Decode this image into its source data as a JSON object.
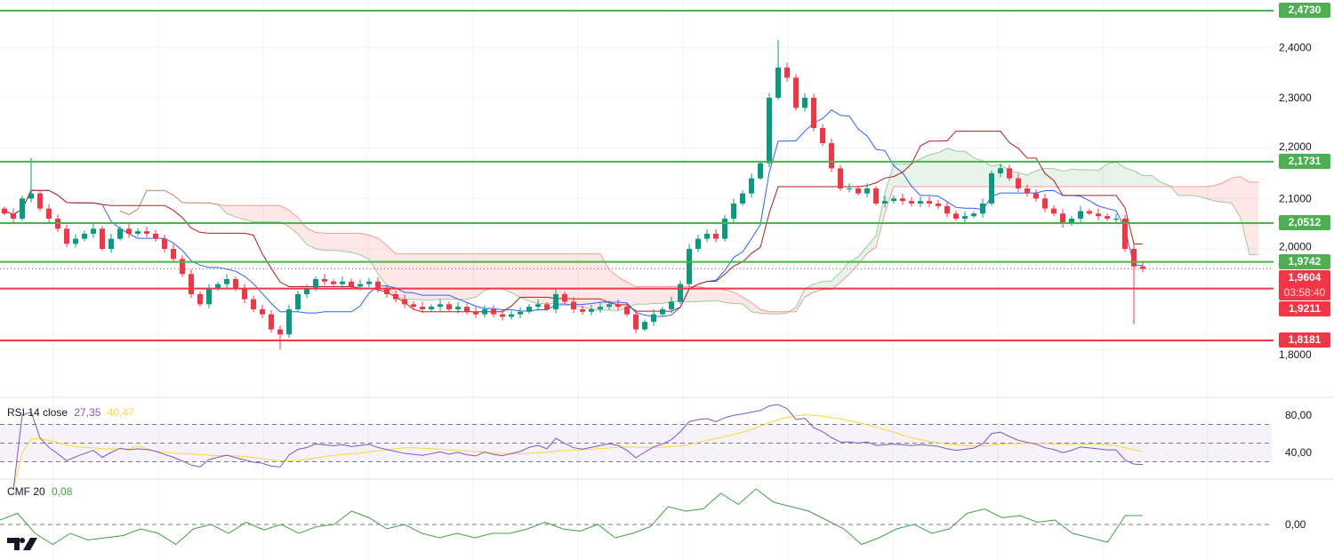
{
  "chart_data": {
    "type": "candlestick",
    "price_axis": {
      "min": 1.78,
      "max": 2.48,
      "ticks": [
        "2,4000",
        "2,3000",
        "2,2000",
        "2,1000",
        "2,0000",
        "1,8000"
      ],
      "tick_values": [
        2.4,
        2.3,
        2.2,
        2.1,
        2.0,
        1.8
      ]
    },
    "closes": [
      2.07,
      2.06,
      2.1,
      2.11,
      2.08,
      2.06,
      2.04,
      2.01,
      2.02,
      2.03,
      2.04,
      2.0,
      2.02,
      2.04,
      2.03,
      2.035,
      2.03,
      2.02,
      2.0,
      1.98,
      1.95,
      1.91,
      1.89,
      1.92,
      1.93,
      1.94,
      1.92,
      1.9,
      1.88,
      1.87,
      1.84,
      1.83,
      1.88,
      1.91,
      1.92,
      1.94,
      1.935,
      1.93,
      1.935,
      1.925,
      1.93,
      1.935,
      1.92,
      1.91,
      1.9,
      1.89,
      1.885,
      1.88,
      1.885,
      1.89,
      1.88,
      1.885,
      1.875,
      1.87,
      1.88,
      1.87,
      1.865,
      1.87,
      1.875,
      1.885,
      1.89,
      1.88,
      1.91,
      1.895,
      1.88,
      1.875,
      1.88,
      1.885,
      1.89,
      1.885,
      1.87,
      1.84,
      1.855,
      1.87,
      1.88,
      1.895,
      1.93,
      2.0,
      2.02,
      2.03,
      2.02,
      2.06,
      2.09,
      2.11,
      2.14,
      2.17,
      2.3,
      2.36,
      2.34,
      2.28,
      2.3,
      2.24,
      2.21,
      2.16,
      2.12,
      2.12,
      2.11,
      2.12,
      2.09,
      2.095,
      2.1,
      2.095,
      2.09,
      2.095,
      2.09,
      2.085,
      2.07,
      2.06,
      2.065,
      2.07,
      2.09,
      2.15,
      2.16,
      2.14,
      2.12,
      2.11,
      2.1,
      2.08,
      2.07,
      2.05,
      2.06,
      2.075,
      2.07,
      2.065,
      2.06,
      2.06,
      2.0,
      1.965,
      1.9604
    ],
    "first_open": 2.08,
    "wick_overrides": {
      "127": {
        "low": 1.85
      },
      "87": {
        "high": 2.415
      },
      "3": {
        "high": 2.18
      },
      "31": {
        "low": 1.8
      }
    },
    "levels": [
      {
        "value": 2.473,
        "label": "2,4730",
        "color": "#4caf50"
      },
      {
        "value": 2.1731,
        "label": "2,1731",
        "color": "#4caf50"
      },
      {
        "value": 2.0512,
        "label": "2,0512",
        "color": "#4caf50"
      },
      {
        "value": 1.9742,
        "label": "1,9742",
        "color": "#4caf50"
      },
      {
        "value": 1.9211,
        "label": "1,9211",
        "color": "#f23645"
      },
      {
        "value": 1.8181,
        "label": "1,8181",
        "color": "#f23645"
      }
    ],
    "current_price": {
      "value": 1.9604,
      "label": "1,9604",
      "countdown": "03:58:40"
    },
    "ichimoku": {
      "tenkan": 9,
      "kijun": 26,
      "span_b": 52,
      "displacement": 13
    },
    "rsi": {
      "title": "RSI 14 close",
      "value": "27,35",
      "ma_value": "40,47",
      "period": 14,
      "ma_period": 14,
      "upper_band": 70,
      "lower_band": 30,
      "mid": 50,
      "ticks": [
        "80,00",
        "40,00"
      ],
      "tick_values": [
        80,
        40
      ]
    },
    "cmf": {
      "title": "CMF 20",
      "value": "0,08",
      "ticks": [
        "0,00"
      ],
      "values": [
        0.04,
        0.1,
        -0.08,
        -0.18,
        -0.08,
        -0.14,
        -0.12,
        -0.1,
        -0.04,
        -0.08,
        -0.18,
        -0.04,
        0,
        -0.08,
        0.02,
        -0.05,
        0,
        -0.08,
        -0.02,
        0,
        0.12,
        0.06,
        -0.04,
        0,
        -0.08,
        -0.12,
        -0.08,
        -0.12,
        -0.08,
        -0.08,
        -0.04,
        0.02,
        -0.04,
        -0.06,
        0,
        -0.12,
        -0.08,
        -0.02,
        0.16,
        0.12,
        0.14,
        0.28,
        0.18,
        0.32,
        0.2,
        0.16,
        0.12,
        0.04,
        -0.04,
        -0.18,
        -0.12,
        -0.04,
        0,
        -0.08,
        -0.04,
        0.1,
        0.14,
        0.06,
        0.08,
        0.02,
        0.04,
        -0.08,
        -0.12,
        -0.16,
        0.08,
        0.08
      ]
    },
    "colors": {
      "up": "#089981",
      "down": "#f23645",
      "tenkan": "#2962ff",
      "kijun": "#b71c1c",
      "rsi": "#7e57c2",
      "rsi_ma": "#fdd835",
      "cmf": "#43a047"
    }
  }
}
